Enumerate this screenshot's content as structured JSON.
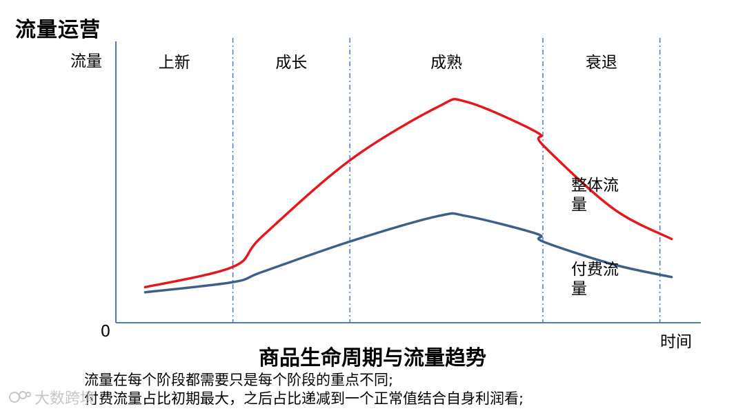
{
  "page": {
    "title": "流量运营",
    "notes": [
      "流量在每个阶段都需要只是每个阶段的重点不同;",
      "付费流量占比初期最大，之后占比递减到一个正常值结合自身利润看;"
    ],
    "watermark": "大数跨境"
  },
  "chart_data": {
    "type": "line",
    "title": "商品生命周期与流量趋势",
    "ylabel": "流量",
    "xlabel": "时间",
    "y_origin_label": "0",
    "grid": false,
    "stages": [
      "上新",
      "成长",
      "成熟",
      "衰退"
    ],
    "stage_bounds": [
      0,
      0.2,
      0.4,
      0.73,
      0.93
    ],
    "x": [
      0.05,
      0.2,
      0.25,
      0.4,
      0.55,
      0.6,
      0.72,
      0.73,
      0.85,
      0.95
    ],
    "series": [
      {
        "name": "整体流量",
        "color": "#e5171b",
        "values": [
          0.14,
          0.22,
          0.34,
          0.64,
          0.85,
          0.87,
          0.75,
          0.7,
          0.45,
          0.33
        ]
      },
      {
        "name": "付费流量",
        "color": "#3e5f8a",
        "values": [
          0.12,
          0.16,
          0.2,
          0.32,
          0.42,
          0.42,
          0.35,
          0.32,
          0.23,
          0.18
        ]
      }
    ]
  }
}
